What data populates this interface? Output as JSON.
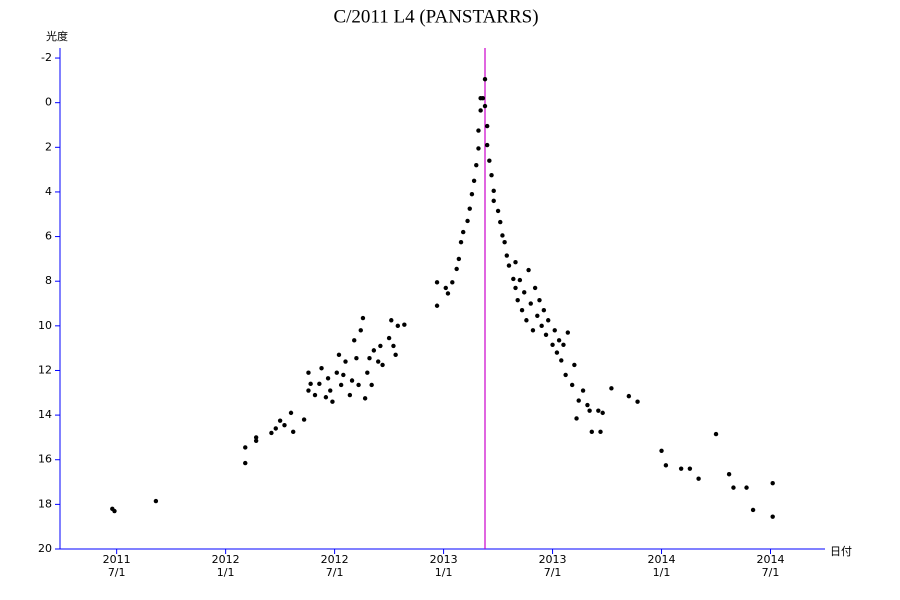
{
  "chart_data": {
    "type": "scatter",
    "title": "C/2011 L4 (PANSTARRS)",
    "y_label": "光度",
    "x_label": "日付",
    "xlim": [
      2011.24,
      2014.75
    ],
    "ylim": [
      20,
      -2.45
    ],
    "yticks": [
      -2,
      0,
      2,
      4,
      6,
      8,
      10,
      12,
      14,
      16,
      18,
      20
    ],
    "xticks": [
      {
        "value": 2011.5,
        "label": "2011",
        "sublabel": "7/1"
      },
      {
        "value": 2012.0,
        "label": "2012",
        "sublabel": "1/1"
      },
      {
        "value": 2012.5,
        "label": "2012",
        "sublabel": "7/1"
      },
      {
        "value": 2013.0,
        "label": "2013",
        "sublabel": "1/1"
      },
      {
        "value": 2013.5,
        "label": "2013",
        "sublabel": "7/1"
      },
      {
        "value": 2014.0,
        "label": "2014",
        "sublabel": "1/1"
      },
      {
        "value": 2014.5,
        "label": "2014",
        "sublabel": "7/1"
      }
    ],
    "axis_color": "#0000ff",
    "vline": {
      "x": 2013.19,
      "color": "#cc00cc"
    },
    "series": [
      {
        "color": "#000000",
        "x": [
          2011.48,
          2011.49,
          2011.68,
          2012.09,
          2012.09,
          2012.14,
          2012.14,
          2012.21,
          2012.23,
          2012.25,
          2012.27,
          2012.3,
          2012.31,
          2012.36,
          2012.38,
          2012.38,
          2012.39,
          2012.41,
          2012.43,
          2012.44,
          2012.46,
          2012.47,
          2012.48,
          2012.49,
          2012.51,
          2012.52,
          2012.53,
          2012.54,
          2012.55,
          2012.57,
          2012.58,
          2012.59,
          2012.6,
          2012.61,
          2012.62,
          2012.63,
          2012.64,
          2012.65,
          2012.66,
          2012.67,
          2012.68,
          2012.7,
          2012.71,
          2012.72,
          2012.75,
          2012.76,
          2012.77,
          2012.78,
          2012.79,
          2012.82,
          2012.97,
          2012.97,
          2013.01,
          2013.02,
          2013.04,
          2013.06,
          2013.07,
          2013.08,
          2013.09,
          2013.11,
          2013.12,
          2013.13,
          2013.14,
          2013.15,
          2013.16,
          2013.16,
          2013.17,
          2013.17,
          2013.18,
          2013.19,
          2013.19,
          2013.2,
          2013.2,
          2013.21,
          2013.22,
          2013.23,
          2013.23,
          2013.25,
          2013.26,
          2013.27,
          2013.28,
          2013.29,
          2013.3,
          2013.32,
          2013.33,
          2013.33,
          2013.34,
          2013.35,
          2013.36,
          2013.37,
          2013.38,
          2013.39,
          2013.4,
          2013.41,
          2013.42,
          2013.43,
          2013.44,
          2013.45,
          2013.46,
          2013.47,
          2013.48,
          2013.5,
          2013.51,
          2013.52,
          2013.53,
          2013.54,
          2013.55,
          2013.56,
          2013.57,
          2013.59,
          2013.6,
          2013.61,
          2013.62,
          2013.64,
          2013.66,
          2013.67,
          2013.68,
          2013.71,
          2013.72,
          2013.73,
          2013.77,
          2013.85,
          2013.89,
          2014.0,
          2014.02,
          2014.09,
          2014.13,
          2014.17,
          2014.25,
          2014.31,
          2014.33,
          2014.39,
          2014.42,
          2014.51,
          2014.51
        ],
        "values": [
          18.2,
          18.3,
          17.85,
          16.15,
          15.45,
          15.15,
          15.0,
          14.8,
          14.6,
          14.25,
          14.45,
          13.9,
          14.75,
          14.2,
          12.9,
          12.1,
          12.6,
          13.1,
          12.6,
          11.9,
          13.2,
          12.35,
          12.9,
          13.4,
          12.1,
          11.3,
          12.65,
          12.2,
          11.6,
          13.1,
          12.45,
          10.65,
          11.45,
          12.65,
          10.2,
          9.65,
          13.25,
          12.1,
          11.45,
          12.65,
          11.1,
          11.6,
          10.9,
          11.75,
          10.55,
          9.75,
          10.9,
          11.3,
          10.0,
          9.95,
          9.1,
          8.05,
          8.3,
          8.55,
          8.05,
          7.45,
          7.0,
          6.25,
          5.8,
          5.3,
          4.75,
          4.1,
          3.5,
          2.8,
          2.05,
          1.25,
          0.35,
          -0.2,
          -0.2,
          -1.05,
          0.15,
          1.05,
          1.9,
          2.6,
          3.25,
          3.95,
          4.4,
          4.85,
          5.35,
          5.95,
          6.25,
          6.85,
          7.3,
          7.9,
          7.15,
          8.3,
          8.85,
          7.95,
          9.3,
          8.5,
          9.75,
          7.5,
          9.0,
          10.2,
          8.3,
          9.55,
          8.85,
          10.0,
          9.3,
          10.4,
          9.75,
          10.85,
          10.2,
          11.2,
          10.65,
          11.55,
          10.85,
          12.2,
          10.3,
          12.65,
          11.75,
          14.15,
          13.35,
          12.9,
          13.55,
          13.8,
          14.75,
          13.8,
          14.75,
          13.9,
          12.8,
          13.15,
          13.4,
          15.6,
          16.25,
          16.4,
          16.4,
          16.85,
          14.85,
          16.65,
          17.25,
          17.25,
          18.25,
          17.05,
          18.55
        ]
      }
    ]
  }
}
